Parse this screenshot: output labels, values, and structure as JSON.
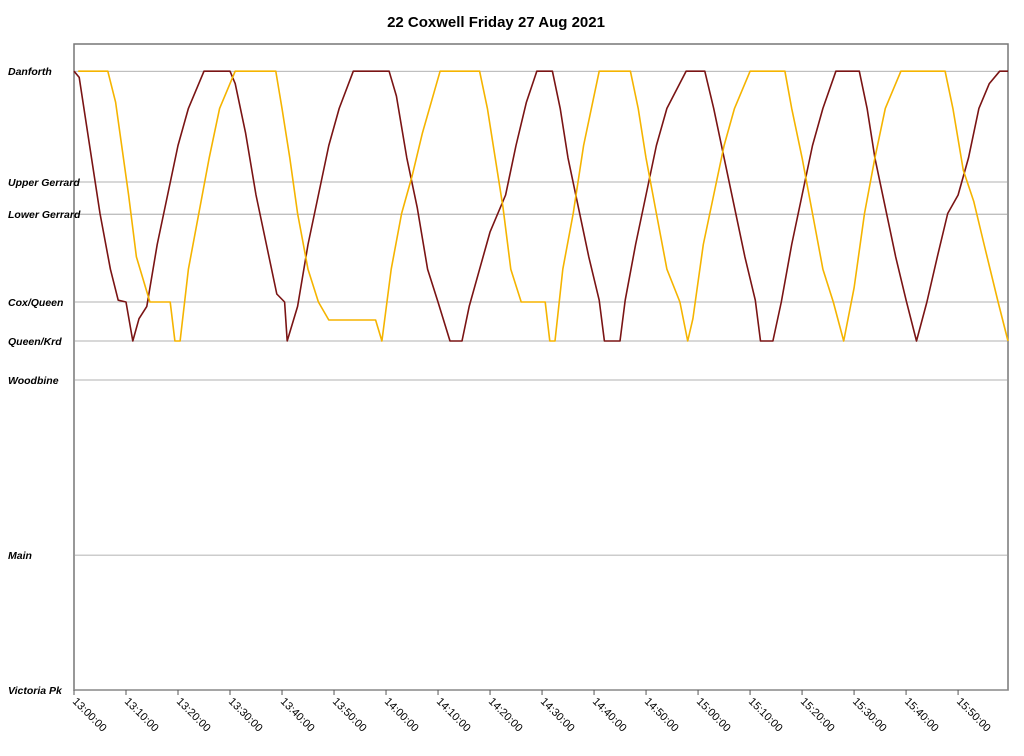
{
  "chart_data": {
    "type": "line",
    "title": "22 Coxwell Friday 27 Aug 2021",
    "xlim": [
      0,
      179.6
    ],
    "xticks": [
      {
        "value": 0,
        "label": "13:00:00"
      },
      {
        "value": 10,
        "label": "13:10:00"
      },
      {
        "value": 20,
        "label": "13:20:00"
      },
      {
        "value": 30,
        "label": "13:30:00"
      },
      {
        "value": 40,
        "label": "13:40:00"
      },
      {
        "value": 50,
        "label": "13:50:00"
      },
      {
        "value": 60,
        "label": "14:00:00"
      },
      {
        "value": 70,
        "label": "14:10:00"
      },
      {
        "value": 80,
        "label": "14:20:00"
      },
      {
        "value": 90,
        "label": "14:30:00"
      },
      {
        "value": 100,
        "label": "14:40:00"
      },
      {
        "value": 110,
        "label": "14:50:00"
      },
      {
        "value": 120,
        "label": "15:00:00"
      },
      {
        "value": 130,
        "label": "15:10:00"
      },
      {
        "value": 140,
        "label": "15:20:00"
      },
      {
        "value": 150,
        "label": "15:30:00"
      },
      {
        "value": 160,
        "label": "15:40:00"
      },
      {
        "value": 170,
        "label": "15:50:00"
      }
    ],
    "ylim": [
      0,
      104.4
    ],
    "yticks": [
      {
        "value": 100,
        "label": "Danforth"
      },
      {
        "value": 82.1,
        "label": "Upper Gerrard"
      },
      {
        "value": 76.9,
        "label": "Lower Gerrard"
      },
      {
        "value": 62.7,
        "label": "Cox/Queen"
      },
      {
        "value": 56.4,
        "label": "Queen/Krd"
      },
      {
        "value": 50.1,
        "label": "Woodbine"
      },
      {
        "value": 21.8,
        "label": "Main"
      },
      {
        "value": 0,
        "label": "Victoria Pk"
      }
    ],
    "grid": true,
    "series": [
      {
        "color": "#7a1414",
        "x": [
          0,
          1,
          3,
          5,
          7,
          8.5,
          10,
          11.3,
          12.5,
          14,
          16,
          18,
          20,
          22,
          25,
          30,
          31,
          33,
          35,
          37,
          39,
          40.5,
          41,
          43,
          45,
          47,
          49,
          51,
          53.7,
          60.6,
          62,
          64,
          66,
          68,
          70,
          72.3,
          74.6,
          76,
          78,
          80,
          83,
          85,
          87,
          89,
          92,
          93.5,
          95,
          97,
          99,
          101,
          102,
          105,
          106,
          108,
          110,
          112,
          114,
          117.7,
          121.3,
          123,
          125,
          127,
          129,
          131,
          132,
          134.4,
          136,
          138,
          140,
          142,
          144,
          146.5,
          151,
          152.5,
          154,
          156,
          158,
          160,
          162,
          164,
          166,
          168,
          170,
          172,
          174,
          176,
          178,
          179.6
        ],
        "values": [
          100,
          99,
          88,
          77,
          68,
          63,
          62.7,
          56.4,
          60,
          62,
          72,
          80,
          88,
          94,
          100,
          100,
          98,
          90,
          80,
          72,
          64,
          62.7,
          56.4,
          62,
          72,
          80,
          88,
          94,
          100,
          100,
          96,
          86,
          78,
          68,
          62.7,
          56.4,
          56.4,
          62,
          68,
          74,
          80,
          88,
          95,
          100,
          100,
          94,
          86,
          78,
          70,
          63,
          56.4,
          56.4,
          63,
          72,
          80,
          88,
          94,
          100,
          100,
          94,
          86,
          78,
          70,
          63,
          56.4,
          56.4,
          62.7,
          72,
          80,
          88,
          94,
          100,
          100,
          94,
          86,
          78,
          70,
          63,
          56.4,
          62.7,
          70,
          77,
          80,
          86,
          94,
          98,
          100,
          100
        ]
      },
      {
        "color": "#f5b400",
        "x": [
          0.8,
          6.5,
          8,
          9.5,
          10.5,
          12,
          14.6,
          18.5,
          19.4,
          20.4,
          22,
          24,
          26,
          28,
          31,
          38.8,
          40,
          41.5,
          43,
          45,
          47,
          49,
          58,
          59.2,
          61,
          63,
          65,
          67,
          70.4,
          78,
          79.5,
          81,
          82.5,
          84,
          86,
          90.6,
          91.5,
          92.5,
          94,
          96,
          98,
          101,
          107,
          108.5,
          110,
          112,
          114,
          116.5,
          118,
          119,
          121,
          123,
          125,
          127,
          130,
          136.7,
          138,
          140,
          142,
          144,
          146,
          148,
          150,
          152,
          154,
          156,
          159,
          167.5,
          169,
          171,
          173,
          175,
          177.7,
          179.6
        ],
        "values": [
          100,
          100,
          95,
          86,
          80,
          70,
          62.7,
          62.7,
          56.4,
          56.4,
          68,
          77,
          86,
          94,
          100,
          100,
          94,
          86,
          77,
          68,
          62.7,
          59.8,
          59.8,
          56.4,
          68,
          77,
          83,
          90,
          100,
          100,
          94,
          86,
          78,
          68,
          62.7,
          62.7,
          56.4,
          56.4,
          68,
          77,
          88,
          100,
          100,
          94,
          86,
          77,
          68,
          62.7,
          56.4,
          60,
          72,
          80,
          88,
          94,
          100,
          100,
          94,
          86,
          77,
          68,
          62.7,
          56.4,
          65,
          77,
          86,
          94,
          100,
          100,
          94,
          84,
          79,
          72,
          62.7,
          56.4
        ]
      }
    ]
  }
}
